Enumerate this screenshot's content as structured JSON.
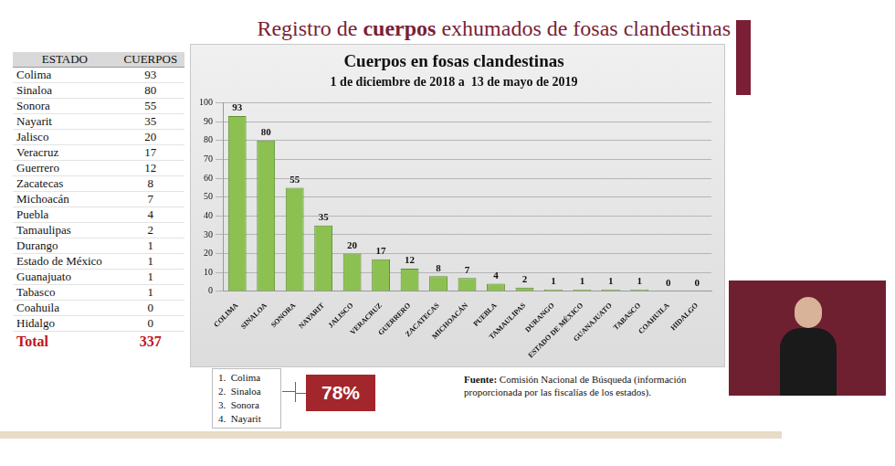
{
  "title": [
    "Registro de ",
    "cuerpos",
    " exhumados de fosas clandestinas"
  ],
  "table": {
    "header": [
      "ESTADO",
      "CUERPOS"
    ],
    "rows": [
      [
        "Colima",
        93
      ],
      [
        "Sinaloa",
        80
      ],
      [
        "Sonora",
        55
      ],
      [
        "Nayarit",
        35
      ],
      [
        "Jalisco",
        20
      ],
      [
        "Veracruz",
        17
      ],
      [
        "Guerrero",
        12
      ],
      [
        "Zacatecas",
        8
      ],
      [
        "Michoacán",
        7
      ],
      [
        "Puebla",
        4
      ],
      [
        "Tamaulipas",
        2
      ],
      [
        "Durango",
        1
      ],
      [
        "Estado de México",
        1
      ],
      [
        "Guanajuato",
        1
      ],
      [
        "Tabasco",
        1
      ],
      [
        "Coahuila",
        0
      ],
      [
        "Hidalgo",
        0
      ]
    ],
    "total": [
      "Total",
      337
    ]
  },
  "chart_data": {
    "type": "bar",
    "title": "Cuerpos en fosas clandestinas",
    "subtitle": "1 de diciembre de 2018 a  13 de mayo de 2019",
    "categories": [
      "COLIMA",
      "SINALOA",
      "SONORA",
      "NAYARIT",
      "JALISCO",
      "VERACRUZ",
      "GUERRERO",
      "ZACATECAS",
      "MICHOACÁN",
      "PUEBLA",
      "TAMAULIPAS",
      "DURANGO",
      "ESTADO DE MÉXICO",
      "GUANAJUATO",
      "TABASCO",
      "COAHUILA",
      "HIDALGO"
    ],
    "values": [
      93,
      80,
      55,
      35,
      20,
      17,
      12,
      8,
      7,
      4,
      2,
      1,
      1,
      1,
      1,
      0,
      0
    ],
    "color": "#8cc152",
    "ylim": [
      0,
      100
    ],
    "yticks": [
      0,
      10,
      20,
      30,
      40,
      50,
      60,
      70,
      80,
      90,
      100
    ],
    "grid": true,
    "data_labels": true
  },
  "ranking": [
    [
      "1.",
      "Colima"
    ],
    [
      "2.",
      "Sinaloa"
    ],
    [
      "3.",
      "Sonora"
    ],
    [
      "4.",
      "Nayarit"
    ]
  ],
  "share": {
    "value": 78,
    "label": "78%"
  },
  "source": {
    "label": "Fuente:",
    "text": "Comisión Nacional de Búsqueda (información proporcionada por las fiscalías de los estados)."
  }
}
